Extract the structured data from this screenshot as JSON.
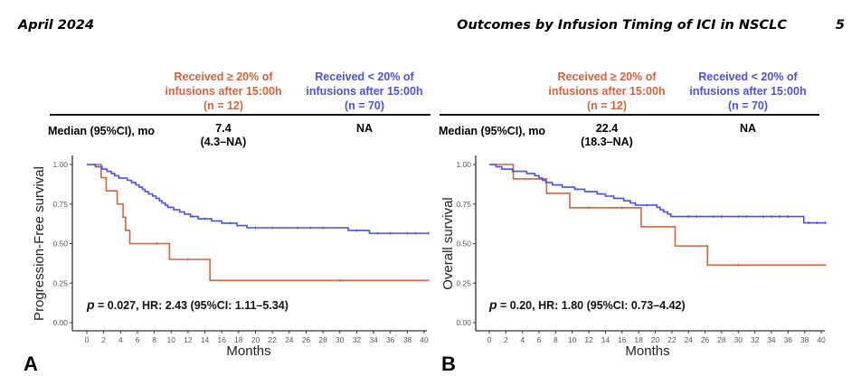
{
  "running_head": {
    "left": "April 2024",
    "title": "Outcomes by Infusion Timing of ICI in NSCLC",
    "page_number": "5"
  },
  "colors": {
    "group_late": "#d4623a",
    "group_early": "#4a4ff0"
  },
  "panels": [
    {
      "letter": "A",
      "table": {
        "col_late": [
          "Received ≥ 20% of",
          "infusions after 15:00h",
          "(n = 12)"
        ],
        "col_early": [
          "Received < 20% of",
          "infusions after 15:00h",
          "(n = 70)"
        ],
        "row_label": "Median (95%CI), mo",
        "late_value": [
          "7.4",
          "(4.3–NA)"
        ],
        "early_value": [
          "NA"
        ]
      },
      "stat": {
        "p_label": "p",
        "text": " = 0.027, HR: 2.43 (95%CI: 1.11–5.34)"
      }
    },
    {
      "letter": "B",
      "table": {
        "col_late": [
          "Received ≥ 20% of",
          "infusions after 15:00h",
          "(n = 12)"
        ],
        "col_early": [
          "Received < 20% of",
          "infusions after 15:00h",
          "(n = 70)"
        ],
        "row_label": "Median (95%CI), mo",
        "late_value": [
          "22.4",
          "(18.3–NA)"
        ],
        "early_value": [
          "NA"
        ]
      },
      "stat": {
        "p_label": "p",
        "text": " = 0.20, HR: 1.80 (95%CI: 0.73–4.42)"
      }
    }
  ],
  "chart_data": [
    {
      "type": "line",
      "subtype": "kaplan-meier-step",
      "title": "",
      "xlabel": "Months",
      "ylabel": "Progression-Free survival",
      "xlim": [
        0,
        40
      ],
      "ylim": [
        0,
        1
      ],
      "xticks": [
        0,
        2,
        4,
        6,
        8,
        10,
        12,
        14,
        16,
        18,
        20,
        22,
        24,
        26,
        28,
        30,
        32,
        34,
        36,
        38,
        40
      ],
      "yticks": [
        "0.00",
        "0.25",
        "0.50",
        "0.75",
        "1.00"
      ],
      "grid": false,
      "series": [
        {
          "name": "Received ≥ 20% of infusions after 15:00h (n = 12)",
          "color_key": "group_late",
          "steps": [
            [
              0,
              1.0
            ],
            [
              1.7,
              0.917
            ],
            [
              2.3,
              0.833
            ],
            [
              3.6,
              0.75
            ],
            [
              4.3,
              0.667
            ],
            [
              4.6,
              0.583
            ],
            [
              5.1,
              0.5
            ],
            [
              9.8,
              0.4
            ],
            [
              14.6,
              0.267
            ],
            [
              41,
              0.267
            ]
          ],
          "censor": [
            8.3,
            12.0,
            30.0
          ]
        },
        {
          "name": "Received < 20% of infusions after 15:00h (n = 70)",
          "color_key": "group_early",
          "steps": [
            [
              0,
              1.0
            ],
            [
              1.0,
              0.986
            ],
            [
              1.8,
              0.971
            ],
            [
              2.4,
              0.957
            ],
            [
              2.9,
              0.943
            ],
            [
              3.3,
              0.929
            ],
            [
              3.8,
              0.914
            ],
            [
              4.8,
              0.9
            ],
            [
              5.3,
              0.886
            ],
            [
              5.8,
              0.871
            ],
            [
              6.2,
              0.857
            ],
            [
              6.6,
              0.843
            ],
            [
              6.9,
              0.829
            ],
            [
              7.3,
              0.814
            ],
            [
              7.8,
              0.8
            ],
            [
              8.2,
              0.786
            ],
            [
              8.6,
              0.771
            ],
            [
              8.9,
              0.757
            ],
            [
              9.3,
              0.743
            ],
            [
              9.6,
              0.729
            ],
            [
              10.3,
              0.714
            ],
            [
              11.0,
              0.7
            ],
            [
              11.6,
              0.686
            ],
            [
              12.3,
              0.671
            ],
            [
              13.2,
              0.657
            ],
            [
              14.8,
              0.643
            ],
            [
              16.0,
              0.629
            ],
            [
              17.8,
              0.614
            ],
            [
              19.0,
              0.6
            ],
            [
              31.0,
              0.583
            ],
            [
              33.5,
              0.565
            ],
            [
              41,
              0.565
            ]
          ],
          "censor": [
            12.5,
            14.0,
            17.0,
            20.0,
            22.0,
            25.0,
            26.5,
            28.0,
            32.0,
            34.5,
            36.0,
            38.0,
            39.0,
            40.5
          ]
        }
      ]
    },
    {
      "type": "line",
      "subtype": "kaplan-meier-step",
      "title": "",
      "xlabel": "Months",
      "ylabel": "Overall survival",
      "xlim": [
        0,
        40
      ],
      "ylim": [
        0,
        1
      ],
      "xticks": [
        0,
        2,
        4,
        6,
        8,
        10,
        12,
        14,
        16,
        18,
        20,
        22,
        24,
        26,
        28,
        30,
        32,
        34,
        36,
        38,
        40
      ],
      "yticks": [
        "0.00",
        "0.25",
        "0.50",
        "0.75",
        "1.00"
      ],
      "grid": false,
      "series": [
        {
          "name": "Received ≥ 20% of infusions after 15:00h (n = 12)",
          "color_key": "group_late",
          "steps": [
            [
              0,
              1.0
            ],
            [
              2.9,
              0.909
            ],
            [
              6.9,
              0.818
            ],
            [
              9.7,
              0.727
            ],
            [
              18.3,
              0.606
            ],
            [
              22.4,
              0.485
            ],
            [
              26.3,
              0.364
            ],
            [
              41,
              0.364
            ]
          ],
          "censor": [
            12.0,
            16.0,
            30.0
          ]
        },
        {
          "name": "Received < 20% of infusions after 15:00h (n = 70)",
          "color_key": "group_early",
          "steps": [
            [
              0,
              1.0
            ],
            [
              0.8,
              0.986
            ],
            [
              1.5,
              0.971
            ],
            [
              2.8,
              0.957
            ],
            [
              4.5,
              0.943
            ],
            [
              5.5,
              0.929
            ],
            [
              6.0,
              0.914
            ],
            [
              6.4,
              0.9
            ],
            [
              6.8,
              0.886
            ],
            [
              7.6,
              0.871
            ],
            [
              8.8,
              0.857
            ],
            [
              10.3,
              0.843
            ],
            [
              11.5,
              0.829
            ],
            [
              13.0,
              0.814
            ],
            [
              14.0,
              0.8
            ],
            [
              15.0,
              0.786
            ],
            [
              16.2,
              0.771
            ],
            [
              17.0,
              0.757
            ],
            [
              17.6,
              0.743
            ],
            [
              20.2,
              0.729
            ],
            [
              20.6,
              0.714
            ],
            [
              21.0,
              0.7
            ],
            [
              21.5,
              0.686
            ],
            [
              21.9,
              0.671
            ],
            [
              37.9,
              0.631
            ],
            [
              41,
              0.631
            ]
          ],
          "censor": [
            19.0,
            24.0,
            25.0,
            27.0,
            28.0,
            30.0,
            31.0,
            33.0,
            34.0,
            35.0,
            36.0,
            38.5,
            39.5,
            40.5
          ]
        }
      ]
    }
  ]
}
